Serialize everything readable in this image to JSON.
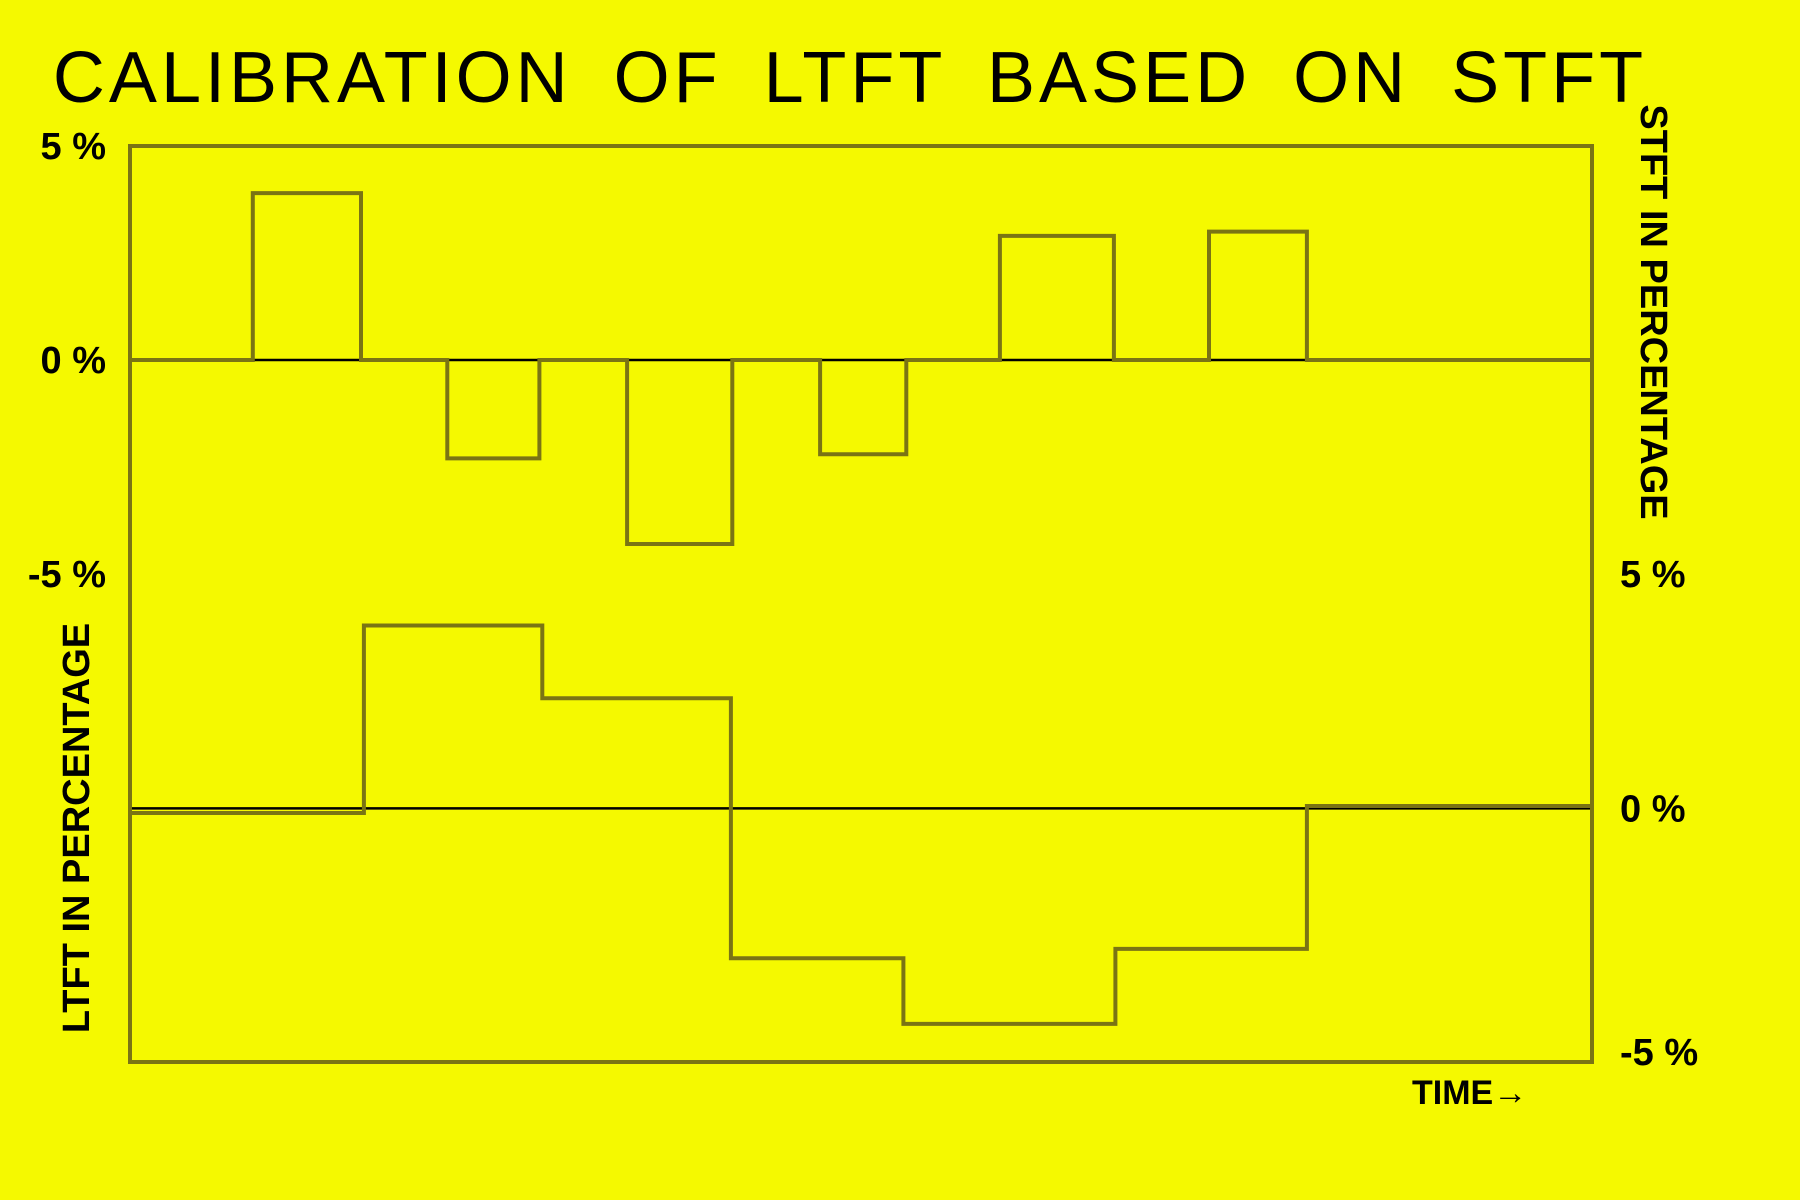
{
  "chart_data": {
    "type": "line",
    "title": "CALIBRATION OF LTFT BASED ON STFT",
    "colors": {
      "background": "#f5f900",
      "trace": "#7a7414",
      "frame": "#7a7414",
      "gridline": "#000000",
      "text": "#000000"
    },
    "xlabel": "TIME→",
    "xlim": [
      0,
      100
    ],
    "panels": [
      {
        "name": "stft",
        "position": "top",
        "axis_side": "left",
        "axis_label": "",
        "ylim": [
          -5,
          5
        ],
        "tick_labels": [
          {
            "value": 5,
            "label": "5 %"
          },
          {
            "value": 0,
            "label": "0 %"
          },
          {
            "value": -5,
            "label": "-5 %"
          }
        ],
        "zero_line": true,
        "step_points": [
          [
            0,
            0
          ],
          [
            8.4,
            0
          ],
          [
            8.4,
            3.9
          ],
          [
            15.8,
            3.9
          ],
          [
            15.8,
            0
          ],
          [
            21.7,
            0
          ],
          [
            21.7,
            -2.3
          ],
          [
            28.0,
            -2.3
          ],
          [
            28.0,
            0
          ],
          [
            34.0,
            0
          ],
          [
            34.0,
            -4.3
          ],
          [
            41.2,
            -4.3
          ],
          [
            41.2,
            0
          ],
          [
            47.2,
            0
          ],
          [
            47.2,
            -2.2
          ],
          [
            53.1,
            -2.2
          ],
          [
            53.1,
            0
          ],
          [
            59.5,
            0
          ],
          [
            59.5,
            2.9
          ],
          [
            67.3,
            2.9
          ],
          [
            67.3,
            0
          ],
          [
            73.8,
            0
          ],
          [
            73.8,
            3.0
          ],
          [
            80.5,
            3.0
          ],
          [
            80.5,
            0
          ],
          [
            100,
            0
          ]
        ]
      },
      {
        "name": "ltft",
        "position": "bottom",
        "axis_side": "right",
        "axis_label": "",
        "ylim": [
          -5.2,
          5
        ],
        "tick_labels": [
          {
            "value": 5,
            "label": "5 %"
          },
          {
            "value": 0,
            "label": "0 %"
          },
          {
            "value": -5.2,
            "label": "-5 %"
          }
        ],
        "zero_line": true,
        "step_points": [
          [
            0,
            -0.1
          ],
          [
            16.0,
            -0.1
          ],
          [
            16.0,
            3.9
          ],
          [
            28.2,
            3.9
          ],
          [
            28.2,
            2.35
          ],
          [
            41.1,
            2.35
          ],
          [
            41.1,
            -3.2
          ],
          [
            52.9,
            -3.2
          ],
          [
            52.9,
            -4.6
          ],
          [
            67.4,
            -4.6
          ],
          [
            67.4,
            -3.0
          ],
          [
            80.5,
            -3.0
          ],
          [
            80.5,
            0.05
          ],
          [
            100,
            0.05
          ]
        ]
      }
    ],
    "left_axis_title": "LTFT IN PERCENTAGE",
    "right_axis_title": "STFT IN PERCENTAGE"
  }
}
